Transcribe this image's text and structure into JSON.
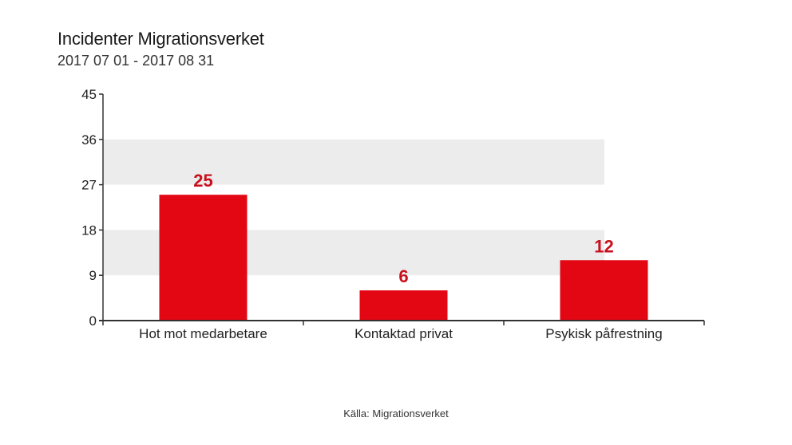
{
  "header": {
    "title": "Incidenter Migrationsverket",
    "subtitle": "2017 07 01 - 2017 08 31"
  },
  "footer": {
    "source": "Källa: Migrationsverket"
  },
  "colors": {
    "bar": "#e30613",
    "label": "#c8101c",
    "band": "#ececec",
    "axis": "#333333"
  },
  "chart_data": {
    "type": "bar",
    "title": "Incidenter Migrationsverket",
    "subtitle": "2017 07 01 - 2017 08 31",
    "categories": [
      "Hot mot medarbetare",
      "Kontaktad privat",
      "Psykisk påfrestning"
    ],
    "values": [
      25,
      6,
      12
    ],
    "data_labels": [
      "25",
      "6",
      "12"
    ],
    "yticks": [
      "0",
      "9",
      "18",
      "27",
      "36",
      "45"
    ],
    "ylim": [
      0,
      45
    ],
    "xlabel": "",
    "ylabel": "",
    "grid": "alternating horizontal bands",
    "legend": "none"
  }
}
